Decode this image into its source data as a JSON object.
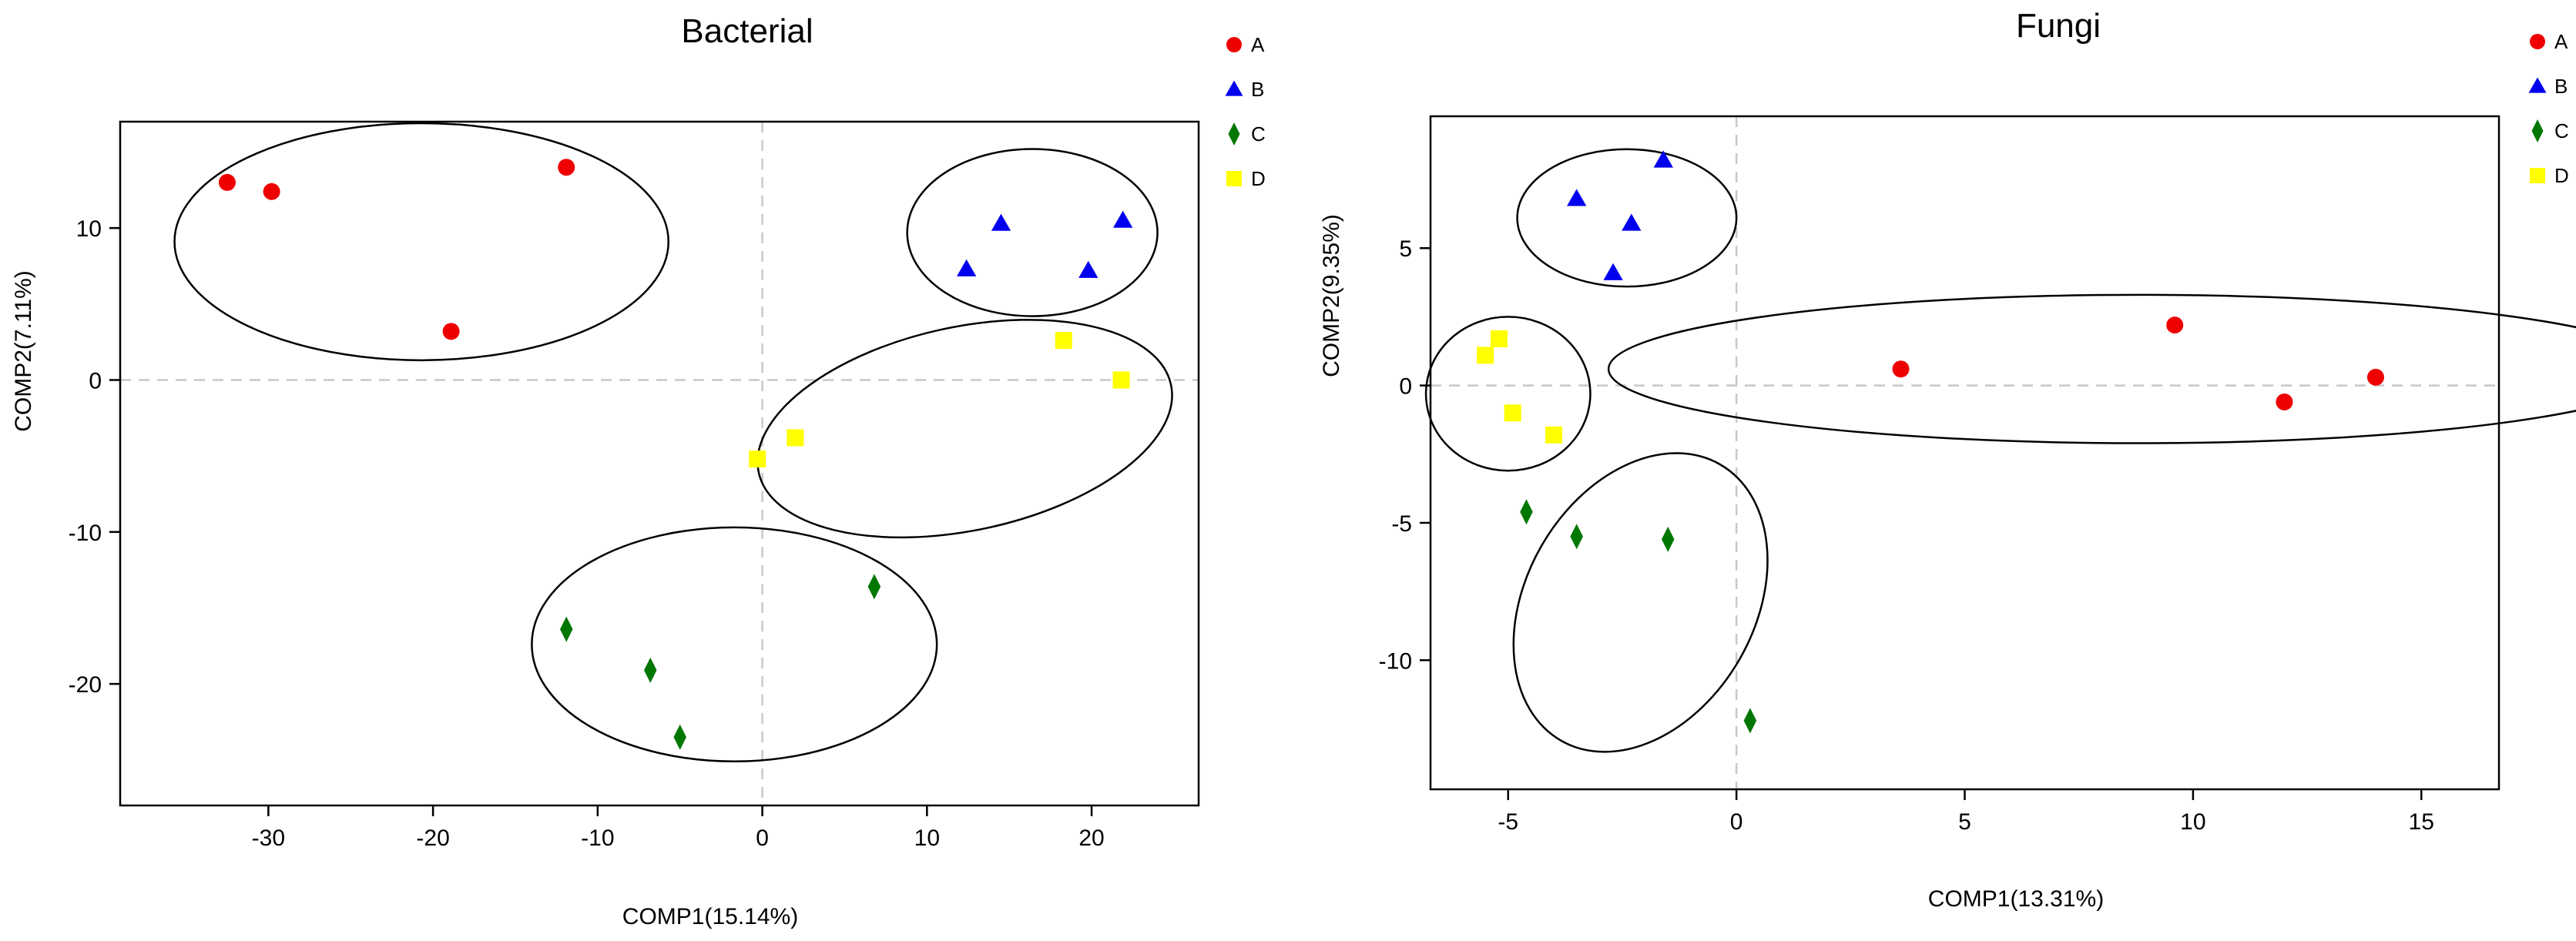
{
  "chart_data": [
    {
      "type": "scatter",
      "title": "Bacterial",
      "xlabel": "COMP1(15.14%)",
      "ylabel": "COMP2(7.11%)",
      "xlim": [
        -39,
        26.5
      ],
      "ylim": [
        -28,
        17
      ],
      "xticks": [
        -30,
        -20,
        -10,
        0,
        10,
        20
      ],
      "yticks": [
        -20,
        -10,
        0,
        10
      ],
      "grid": false,
      "zero_lines": true,
      "legend": "top-right-outside",
      "series": [
        {
          "name": "A",
          "marker": "circle",
          "color": "#ee0000",
          "points": [
            [
              -32.5,
              13.0
            ],
            [
              -29.8,
              12.4
            ],
            [
              -11.9,
              14.0
            ],
            [
              -18.9,
              3.2
            ]
          ]
        },
        {
          "name": "B",
          "marker": "triangle",
          "color": "#0000ee",
          "points": [
            [
              14.5,
              10.3
            ],
            [
              21.9,
              10.5
            ],
            [
              12.4,
              7.3
            ],
            [
              19.8,
              7.2
            ]
          ]
        },
        {
          "name": "C",
          "marker": "diamond",
          "color": "#007700",
          "points": [
            [
              -11.9,
              -16.4
            ],
            [
              -6.8,
              -19.1
            ],
            [
              -5.0,
              -23.5
            ],
            [
              6.8,
              -13.6
            ]
          ]
        },
        {
          "name": "D",
          "marker": "square",
          "color": "#ffff00",
          "points": [
            [
              18.3,
              2.6
            ],
            [
              21.8,
              0.0
            ],
            [
              2.0,
              -3.8
            ],
            [
              -0.3,
              -5.2
            ]
          ]
        }
      ],
      "ellipses": [
        {
          "group": "A",
          "cx": -20.7,
          "cy": 9.1,
          "rx": 15.0,
          "ry": 7.8,
          "angle": 0
        },
        {
          "group": "B",
          "cx": 16.4,
          "cy": 9.7,
          "rx": 7.6,
          "ry": 5.5,
          "angle": 0
        },
        {
          "group": "D",
          "cx": 12.3,
          "cy": -3.2,
          "rx": 12.8,
          "ry": 6.7,
          "angle": 12
        },
        {
          "group": "C",
          "cx": -1.7,
          "cy": -17.4,
          "rx": 12.3,
          "ry": 7.7,
          "angle": 0
        }
      ]
    },
    {
      "type": "scatter",
      "title": "Fungi",
      "xlabel": "COMP1(13.31%)",
      "ylabel": "COMP2(9.35%)",
      "xlim": [
        -6.7,
        16.7
      ],
      "ylim": [
        -14.7,
        9.8
      ],
      "xticks": [
        -5,
        0,
        5,
        10,
        15
      ],
      "yticks": [
        -10,
        -5,
        0,
        5
      ],
      "grid": false,
      "zero_lines": true,
      "legend": "top-right-outside",
      "series": [
        {
          "name": "A",
          "marker": "circle",
          "color": "#ee0000",
          "points": [
            [
              3.6,
              0.6
            ],
            [
              9.6,
              2.2
            ],
            [
              12.0,
              -0.6
            ],
            [
              14.0,
              0.3
            ]
          ]
        },
        {
          "name": "B",
          "marker": "triangle",
          "color": "#0000ee",
          "points": [
            [
              -3.5,
              6.8
            ],
            [
              -1.6,
              8.2
            ],
            [
              -2.3,
              5.9
            ],
            [
              -2.7,
              4.1
            ]
          ]
        },
        {
          "name": "C",
          "marker": "diamond",
          "color": "#007700",
          "points": [
            [
              -4.6,
              -4.6
            ],
            [
              -3.5,
              -5.5
            ],
            [
              -1.5,
              -5.6
            ],
            [
              0.3,
              -12.2
            ]
          ]
        },
        {
          "name": "D",
          "marker": "square",
          "color": "#ffff00",
          "points": [
            [
              -5.5,
              1.1
            ],
            [
              -5.2,
              1.7
            ],
            [
              -4.9,
              -1.0
            ],
            [
              -4.0,
              -1.8
            ]
          ]
        }
      ],
      "ellipses": [
        {
          "group": "B",
          "cx": -2.4,
          "cy": 6.1,
          "rx": 2.4,
          "ry": 2.5,
          "angle": 0
        },
        {
          "group": "D",
          "cx": -5.0,
          "cy": -0.3,
          "rx": 1.8,
          "ry": 2.8,
          "angle": 0
        },
        {
          "group": "A",
          "cx": 8.8,
          "cy": 0.6,
          "rx": 11.6,
          "ry": 2.7,
          "angle": 0
        },
        {
          "group": "C",
          "cx": -2.1,
          "cy": -7.9,
          "rx": 2.5,
          "ry": 5.8,
          "angle": -30
        }
      ]
    }
  ]
}
